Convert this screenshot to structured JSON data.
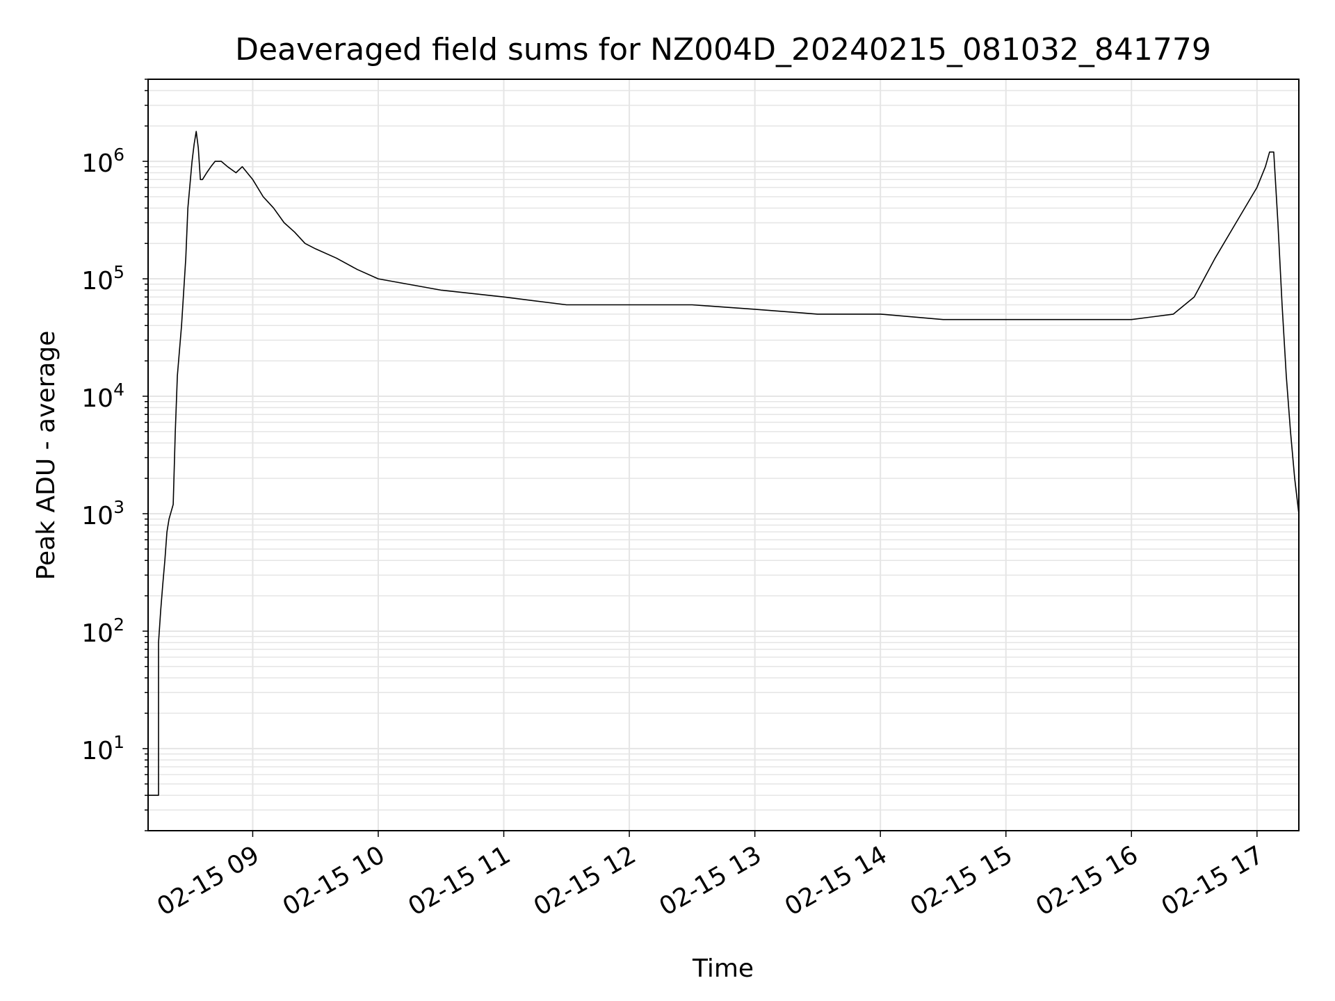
{
  "chart_data": {
    "type": "line",
    "title": "Deaveraged field sums for NZ004D_20240215_081032_841779",
    "xlabel": "Time",
    "ylabel": "Peak ADU - average",
    "yscale": "log",
    "ylim": [
      2,
      5000000
    ],
    "xlim": [
      "2024-02-15 08:10",
      "2024-02-15 17:20"
    ],
    "grid": true,
    "x_ticks": [
      {
        "time": "2024-02-15 09:00",
        "label": "02-15 09"
      },
      {
        "time": "2024-02-15 10:00",
        "label": "02-15 10"
      },
      {
        "time": "2024-02-15 11:00",
        "label": "02-15 11"
      },
      {
        "time": "2024-02-15 12:00",
        "label": "02-15 12"
      },
      {
        "time": "2024-02-15 13:00",
        "label": "02-15 13"
      },
      {
        "time": "2024-02-15 14:00",
        "label": "02-15 14"
      },
      {
        "time": "2024-02-15 15:00",
        "label": "02-15 15"
      },
      {
        "time": "2024-02-15 16:00",
        "label": "02-15 16"
      },
      {
        "time": "2024-02-15 17:00",
        "label": "02-15 17"
      }
    ],
    "y_ticks": [
      {
        "value": 10,
        "base": "10",
        "exp": "1"
      },
      {
        "value": 100,
        "base": "10",
        "exp": "2"
      },
      {
        "value": 1000,
        "base": "10",
        "exp": "3"
      },
      {
        "value": 10000,
        "base": "10",
        "exp": "4"
      },
      {
        "value": 100000,
        "base": "10",
        "exp": "5"
      },
      {
        "value": 1000000,
        "base": "10",
        "exp": "6"
      }
    ],
    "line_color": "#000000",
    "grid_color": "#e5e5e5",
    "series": [
      {
        "x": [
          "2024-02-15 08:10",
          "2024-02-15 08:15",
          "2024-02-15 08:15",
          "2024-02-15 08:16",
          "2024-02-15 08:17",
          "2024-02-15 08:18",
          "2024-02-15 08:19",
          "2024-02-15 08:20",
          "2024-02-15 08:22",
          "2024-02-15 08:23",
          "2024-02-15 08:24",
          "2024-02-15 08:26",
          "2024-02-15 08:28",
          "2024-02-15 08:29",
          "2024-02-15 08:31",
          "2024-02-15 08:32",
          "2024-02-15 08:33",
          "2024-02-15 08:34",
          "2024-02-15 08:35",
          "2024-02-15 08:36",
          "2024-02-15 08:38",
          "2024-02-15 08:40",
          "2024-02-15 08:42",
          "2024-02-15 08:45",
          "2024-02-15 08:48",
          "2024-02-15 08:52",
          "2024-02-15 08:55",
          "2024-02-15 09:00",
          "2024-02-15 09:05",
          "2024-02-15 09:10",
          "2024-02-15 09:15",
          "2024-02-15 09:20",
          "2024-02-15 09:25",
          "2024-02-15 09:30",
          "2024-02-15 09:40",
          "2024-02-15 09:50",
          "2024-02-15 10:00",
          "2024-02-15 10:30",
          "2024-02-15 11:00",
          "2024-02-15 11:30",
          "2024-02-15 12:00",
          "2024-02-15 12:30",
          "2024-02-15 13:00",
          "2024-02-15 13:30",
          "2024-02-15 14:00",
          "2024-02-15 14:30",
          "2024-02-15 15:00",
          "2024-02-15 15:30",
          "2024-02-15 16:00",
          "2024-02-15 16:20",
          "2024-02-15 16:30",
          "2024-02-15 16:40",
          "2024-02-15 16:50",
          "2024-02-15 17:00",
          "2024-02-15 17:04",
          "2024-02-15 17:06",
          "2024-02-15 17:08",
          "2024-02-15 17:10",
          "2024-02-15 17:12",
          "2024-02-15 17:14",
          "2024-02-15 17:16",
          "2024-02-15 17:18",
          "2024-02-15 17:20"
        ],
        "y": [
          4,
          4,
          80,
          150,
          250,
          400,
          700,
          900,
          1200,
          5000,
          15000,
          40000,
          150000,
          400000,
          1000000,
          1400000,
          1800000,
          1300000,
          700000,
          700000,
          800000,
          900000,
          1000000,
          1000000,
          900000,
          800000,
          900000,
          700000,
          500000,
          400000,
          300000,
          250000,
          200000,
          180000,
          150000,
          120000,
          100000,
          80000,
          70000,
          60000,
          60000,
          60000,
          55000,
          50000,
          50000,
          45000,
          45000,
          45000,
          45000,
          50000,
          70000,
          150000,
          300000,
          600000,
          900000,
          1200000,
          1200000,
          300000,
          60000,
          15000,
          5000,
          2000,
          1000
        ]
      }
    ]
  }
}
